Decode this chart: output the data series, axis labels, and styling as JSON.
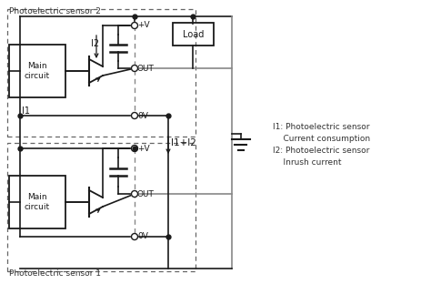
{
  "bg_color": "#ffffff",
  "line_color": "#1a1a1a",
  "gray_line_color": "#888888",
  "dashed_color": "#666666",
  "title_sensor2": "Photoelectric sensor 2",
  "title_sensor1": "Photoelectric sensor 1",
  "label_load": "Load",
  "label_main": "Main\ncircuit",
  "label_out": "OUT",
  "label_pv": "+V",
  "label_0v": "0V",
  "label_i1": "I1",
  "label_i2": "I2",
  "label_i1i2": "I1+I2",
  "legend_l1": "I1: Photoelectric sensor",
  "legend_l2": "    Current consumption",
  "legend_l3": "I2: Photoelectric sensor",
  "legend_l4": "    Inrush current",
  "figsize": [
    4.74,
    3.12
  ],
  "dpi": 100
}
